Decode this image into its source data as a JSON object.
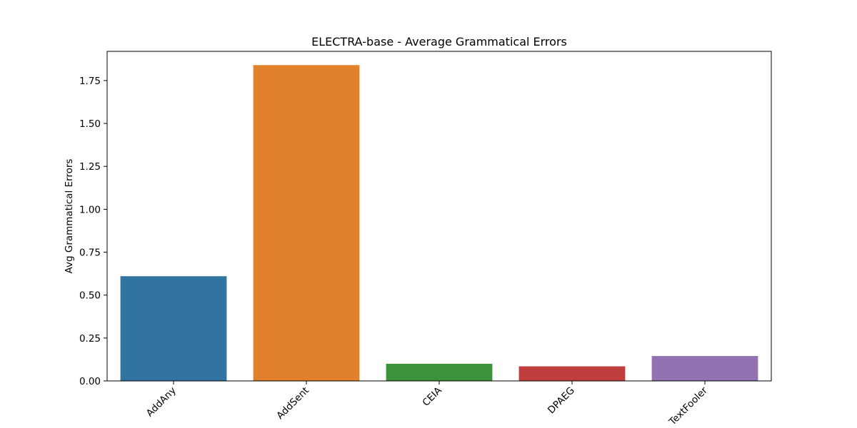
{
  "chart_data": {
    "type": "bar",
    "title": "ELECTRA-base - Average Grammatical Errors",
    "xlabel": "",
    "ylabel": "Avg Grammatical Errors",
    "categories": [
      "AddAny",
      "AddSent",
      "CEIA",
      "DPAEG",
      "TextFooler"
    ],
    "values": [
      0.61,
      1.84,
      0.1,
      0.085,
      0.145
    ],
    "colors": [
      "#3274a1",
      "#e1812c",
      "#3a923a",
      "#c03d3e",
      "#9372b2"
    ],
    "ylim": [
      0,
      1.92
    ],
    "yticks": [
      "0.00",
      "0.25",
      "0.50",
      "0.75",
      "1.00",
      "1.25",
      "1.50",
      "1.75"
    ],
    "grid": false,
    "legend": "none"
  }
}
